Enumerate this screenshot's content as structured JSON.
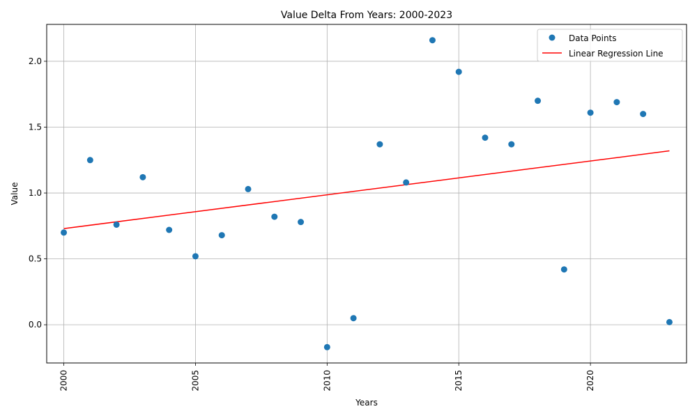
{
  "chart_data": {
    "type": "scatter",
    "title": "Value Delta From Years: 2000-2023",
    "xlabel": "Years",
    "ylabel": "Value",
    "xlim": [
      1999.35,
      2023.65
    ],
    "ylim": [
      -0.29,
      2.28
    ],
    "xticks": [
      2000,
      2005,
      2010,
      2015,
      2020
    ],
    "yticks": [
      0.0,
      0.5,
      1.0,
      1.5,
      2.0
    ],
    "ytick_labels": [
      "0.0",
      "0.5",
      "1.0",
      "1.5",
      "2.0"
    ],
    "grid": true,
    "legend_position": "top-right",
    "series": [
      {
        "name": "Data Points",
        "kind": "scatter",
        "color": "#1f77b4",
        "x": [
          2000,
          2001,
          2002,
          2003,
          2004,
          2005,
          2006,
          2007,
          2008,
          2009,
          2010,
          2011,
          2012,
          2013,
          2014,
          2015,
          2016,
          2017,
          2018,
          2019,
          2020,
          2021,
          2022,
          2023
        ],
        "y": [
          0.7,
          1.25,
          0.76,
          1.12,
          0.72,
          0.52,
          0.68,
          1.03,
          0.82,
          0.78,
          -0.17,
          0.05,
          1.37,
          1.08,
          2.16,
          1.92,
          1.42,
          1.37,
          1.7,
          0.42,
          1.61,
          1.69,
          1.6,
          0.02
        ]
      },
      {
        "name": "Linear Regression Line",
        "kind": "line",
        "color": "#ff0000",
        "x": [
          2000,
          2023
        ],
        "y": [
          0.73,
          1.32
        ]
      }
    ]
  }
}
